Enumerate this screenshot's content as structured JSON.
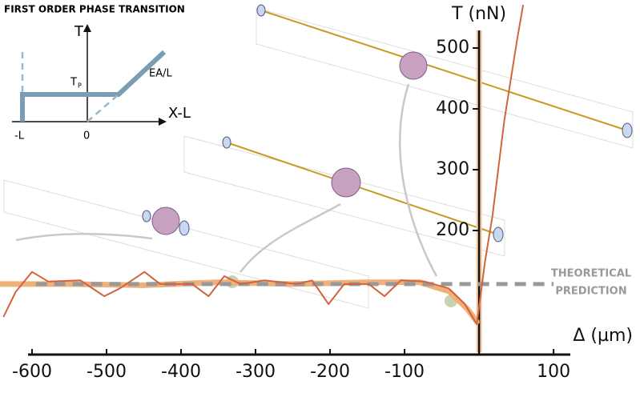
{
  "chart_data": {
    "type": "line",
    "xlabel": "Δ (µm)",
    "ylabel": "T (nN)",
    "xlim": [
      -643,
      216
    ],
    "ylim": [
      0,
      575
    ],
    "xticks": [
      -600,
      -500,
      -400,
      -300,
      -200,
      -100,
      100
    ],
    "yticks": [
      200,
      300,
      400,
      500
    ],
    "annotations": [
      "THEORETICAL",
      "PREDICTION"
    ],
    "series": [
      {
        "color": "#f0b07a",
        "style": "solid",
        "width": 7,
        "x": [
          -643,
          -550,
          -450,
          -350,
          -250,
          -150,
          -80,
          -40,
          -15,
          -3
        ],
        "values": [
          112,
          112,
          110,
          115,
          112,
          115,
          115,
          100,
          70,
          50
        ]
      },
      {
        "color": "#999999",
        "style": "dashed",
        "width": 5,
        "x": [
          -595,
          100
        ],
        "values": [
          112,
          112
        ]
      },
      {
        "color": "#d2643c",
        "style": "solid",
        "width": 2,
        "x": [
          -638,
          -622,
          -600,
          -578,
          -535,
          -503,
          -482,
          -449,
          -428,
          -385,
          -363,
          -342,
          -320,
          -288,
          -245,
          -224,
          -202,
          -181,
          -148,
          -127,
          -105,
          -73,
          -41,
          -19,
          -3,
          8,
          18,
          34,
          51,
          59
        ],
        "values": [
          59,
          99,
          132,
          116,
          118,
          92,
          105,
          132,
          112,
          112,
          92,
          125,
          112,
          118,
          112,
          118,
          79,
          112,
          112,
          92,
          118,
          116,
          105,
          79,
          46,
          149,
          224,
          382,
          513,
          570
        ]
      }
    ]
  },
  "inset": {
    "title": "FIRST ORDER PHASE TRANSITION",
    "ylabel": "T",
    "xlabel": "X-L",
    "tp": "T",
    "tp_sub": "P",
    "slope": "EA/L",
    "neg_l": "-L",
    "zero": "0"
  }
}
